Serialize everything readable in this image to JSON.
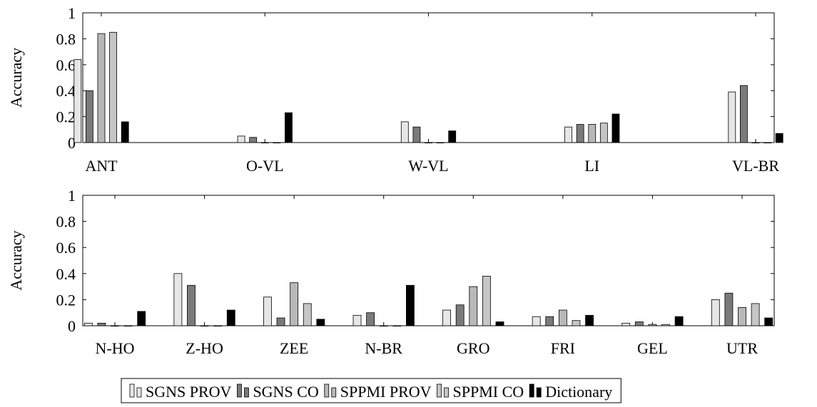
{
  "colors": {
    "SGNS PROV": "#e6e6e6",
    "SGNS CO": "#7a7a7a",
    "SPPMI PROV": "#b8b8b8",
    "SPPMI CO": "#c6c6c6",
    "Dictionary": "#000000"
  },
  "legend": {
    "items": [
      "SGNS PROV",
      "SGNS CO",
      "SPPMI PROV",
      "SPPMI CO",
      "Dictionary"
    ],
    "position": "bottom"
  },
  "chart_data": [
    {
      "type": "bar",
      "title": "",
      "xlabel": "",
      "ylabel": "Accuracy",
      "ylim": [
        0,
        1
      ],
      "yticks": [
        "0",
        "0.2",
        "0.4",
        "0.6",
        "0.8",
        "1"
      ],
      "grid": false,
      "categories": [
        "ANT",
        "O-VL",
        "W-VL",
        "LI",
        "VL-BR"
      ],
      "series": [
        {
          "name": "SGNS PROV",
          "values": [
            0.64,
            0.05,
            0.16,
            0.12,
            0.39
          ]
        },
        {
          "name": "SGNS CO",
          "values": [
            0.4,
            0.04,
            0.12,
            0.14,
            0.44
          ]
        },
        {
          "name": "SPPMI PROV",
          "values": [
            0.84,
            0.0,
            0.0,
            0.14,
            0.0
          ]
        },
        {
          "name": "SPPMI CO",
          "values": [
            0.85,
            0.0,
            0.0,
            0.15,
            0.0
          ]
        },
        {
          "name": "Dictionary",
          "values": [
            0.16,
            0.23,
            0.09,
            0.22,
            0.07
          ]
        }
      ]
    },
    {
      "type": "bar",
      "title": "",
      "xlabel": "",
      "ylabel": "Accuracy",
      "ylim": [
        0,
        1
      ],
      "yticks": [
        "0",
        "0.2",
        "0.4",
        "0.6",
        "0.8",
        "1"
      ],
      "grid": false,
      "categories": [
        "N-HO",
        "Z-HO",
        "ZEE",
        "N-BR",
        "GRO",
        "FRI",
        "GEL",
        "UTR"
      ],
      "series": [
        {
          "name": "SGNS PROV",
          "values": [
            0.02,
            0.4,
            0.22,
            0.08,
            0.12,
            0.07,
            0.02,
            0.2
          ]
        },
        {
          "name": "SGNS CO",
          "values": [
            0.02,
            0.31,
            0.06,
            0.1,
            0.16,
            0.07,
            0.03,
            0.25
          ]
        },
        {
          "name": "SPPMI PROV",
          "values": [
            0.0,
            0.0,
            0.33,
            0.0,
            0.3,
            0.12,
            0.01,
            0.14
          ]
        },
        {
          "name": "SPPMI CO",
          "values": [
            0.0,
            0.0,
            0.17,
            0.0,
            0.38,
            0.04,
            0.01,
            0.17
          ]
        },
        {
          "name": "Dictionary",
          "values": [
            0.11,
            0.12,
            0.05,
            0.31,
            0.03,
            0.08,
            0.07,
            0.06
          ]
        }
      ]
    }
  ]
}
